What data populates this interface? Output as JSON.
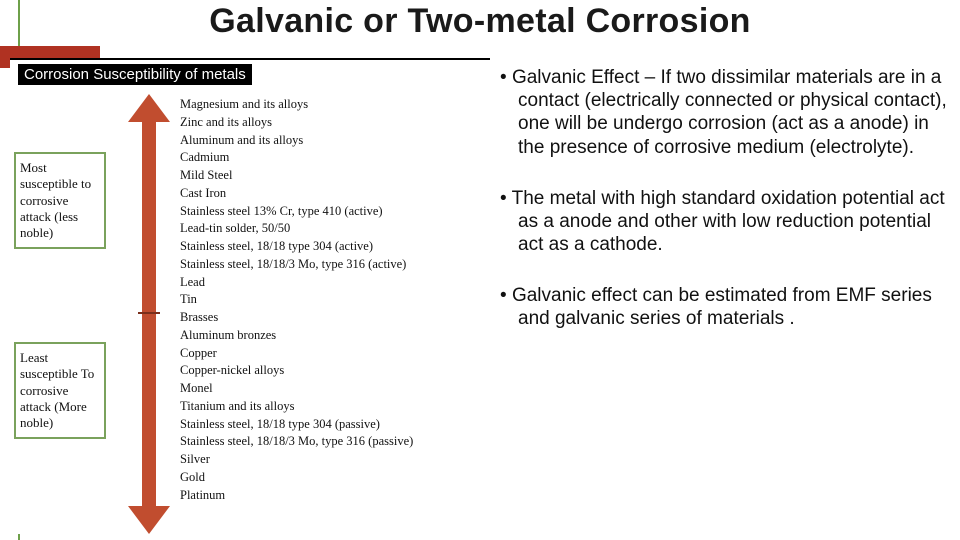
{
  "title": "Galvanic or Two-metal Corrosion",
  "accent": {
    "bar_color": "#b03222",
    "line_color": "#6ea04a"
  },
  "figure": {
    "heading": "Corrosion Susceptibility of metals",
    "label_top": "Most susceptible to corrosive attack (less noble)",
    "label_bottom": "Least susceptible To corrosive attack (More noble)",
    "arrow_color": "#c14d2f",
    "box_border_color": "#7aa25c",
    "series": [
      "Magnesium and its alloys",
      "Zinc and its alloys",
      "Aluminum and its alloys",
      "Cadmium",
      "Mild Steel",
      "Cast Iron",
      "Stainless steel 13% Cr, type 410 (active)",
      "Lead-tin solder, 50/50",
      "Stainless steel, 18/18 type 304 (active)",
      "Stainless steel, 18/18/3 Mo, type 316 (active)",
      "Lead",
      "Tin",
      "Brasses",
      "Aluminum bronzes",
      "Copper",
      "Copper-nickel alloys",
      "Monel",
      "Titanium and its alloys",
      "Stainless steel, 18/18 type 304 (passive)",
      "Stainless steel, 18/18/3 Mo, type 316 (passive)",
      "Silver",
      "Gold",
      "Platinum"
    ]
  },
  "bullets": {
    "b0": "Galvanic Effect – If two dissimilar materials are in a contact (electrically connected or physical contact), one will be undergo corrosion (act as a anode) in the presence of corrosive medium (electrolyte).",
    "b1": "The metal with high standard oxidation potential act as a anode and other with low reduction potential act as a cathode.",
    "b2": "Galvanic effect can be estimated from EMF series and galvanic series of materials ."
  }
}
